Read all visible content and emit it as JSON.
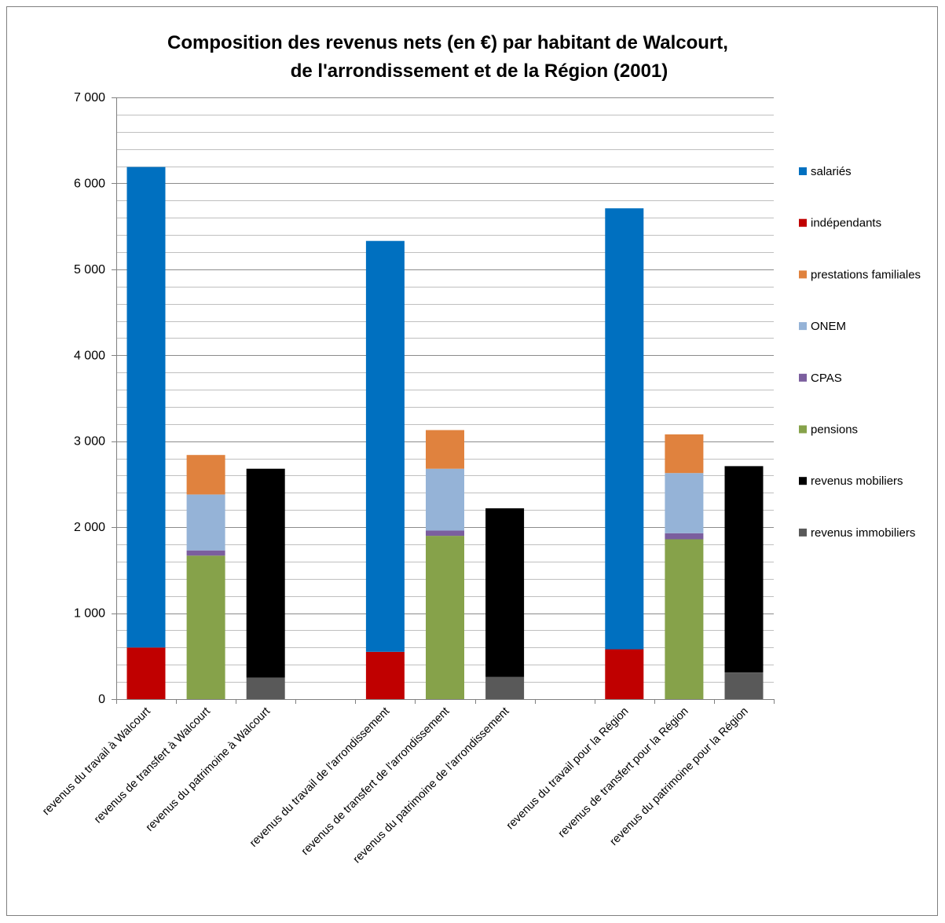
{
  "chart_data": {
    "type": "bar",
    "stacked": true,
    "title": [
      "Composition  des revenus nets (en €) par habitant de Walcourt,",
      "de l'arrondissement  et de la Région (2001)"
    ],
    "xlabel": "",
    "ylabel": "",
    "ylim": [
      0,
      7000
    ],
    "yticks": [
      0,
      1000,
      2000,
      3000,
      4000,
      5000,
      6000,
      7000
    ],
    "ytick_labels": [
      "0",
      "1 000",
      "2 000",
      "3 000",
      "4 000",
      "5 000",
      "6 000",
      "7 000"
    ],
    "grid": true,
    "legend_position": "right",
    "categories": [
      "revenus du travail à Walcourt",
      "revenus de transfert à Walcourt",
      "revenus du patrimoine à Walcourt",
      "",
      "revenus du travail de l'arrondissement",
      "revenus de transfert de l'arrondissement",
      "revenus du patrimoine de l'arrondissement",
      "",
      "revenus du travail pour la Région",
      "revenus de transfert pour la Région",
      "revenus du patrimoine pour la Région"
    ],
    "series": [
      {
        "name": "salariés",
        "color": "#0070C0",
        "values": [
          5590,
          0,
          0,
          0,
          4780,
          0,
          0,
          0,
          5130,
          0,
          0
        ]
      },
      {
        "name": "indépendants",
        "color": "#C00000",
        "values": [
          600,
          0,
          0,
          0,
          550,
          0,
          0,
          0,
          580,
          0,
          0
        ]
      },
      {
        "name": "prestations familiales",
        "color": "#E0823E",
        "values": [
          0,
          460,
          0,
          0,
          0,
          450,
          0,
          0,
          0,
          450,
          0
        ]
      },
      {
        "name": "ONEM",
        "color": "#95B3D7",
        "values": [
          0,
          650,
          0,
          0,
          0,
          720,
          0,
          0,
          0,
          700,
          0
        ]
      },
      {
        "name": "CPAS",
        "color": "#7B5E9E",
        "values": [
          0,
          60,
          0,
          0,
          0,
          60,
          0,
          0,
          0,
          70,
          0
        ]
      },
      {
        "name": "pensions",
        "color": "#86A24A",
        "values": [
          0,
          1670,
          0,
          0,
          0,
          1900,
          0,
          0,
          0,
          1860,
          0
        ]
      },
      {
        "name": "revenus mobiliers",
        "color": "#000000",
        "values": [
          0,
          0,
          2430,
          0,
          0,
          0,
          1960,
          0,
          0,
          0,
          2400
        ]
      },
      {
        "name": "revenus immobiliers",
        "color": "#595959",
        "values": [
          0,
          0,
          250,
          0,
          0,
          0,
          260,
          0,
          0,
          0,
          310
        ]
      }
    ],
    "stack_order_bottom_to_top": [
      "indépendants",
      "salariés",
      "pensions",
      "CPAS",
      "ONEM",
      "prestations familiales",
      "revenus immobiliers",
      "revenus mobiliers"
    ],
    "legend_order": [
      "salariés",
      "indépendants",
      "prestations familiales",
      "ONEM",
      "CPAS",
      "pensions",
      "revenus mobiliers",
      "revenus immobiliers"
    ]
  }
}
